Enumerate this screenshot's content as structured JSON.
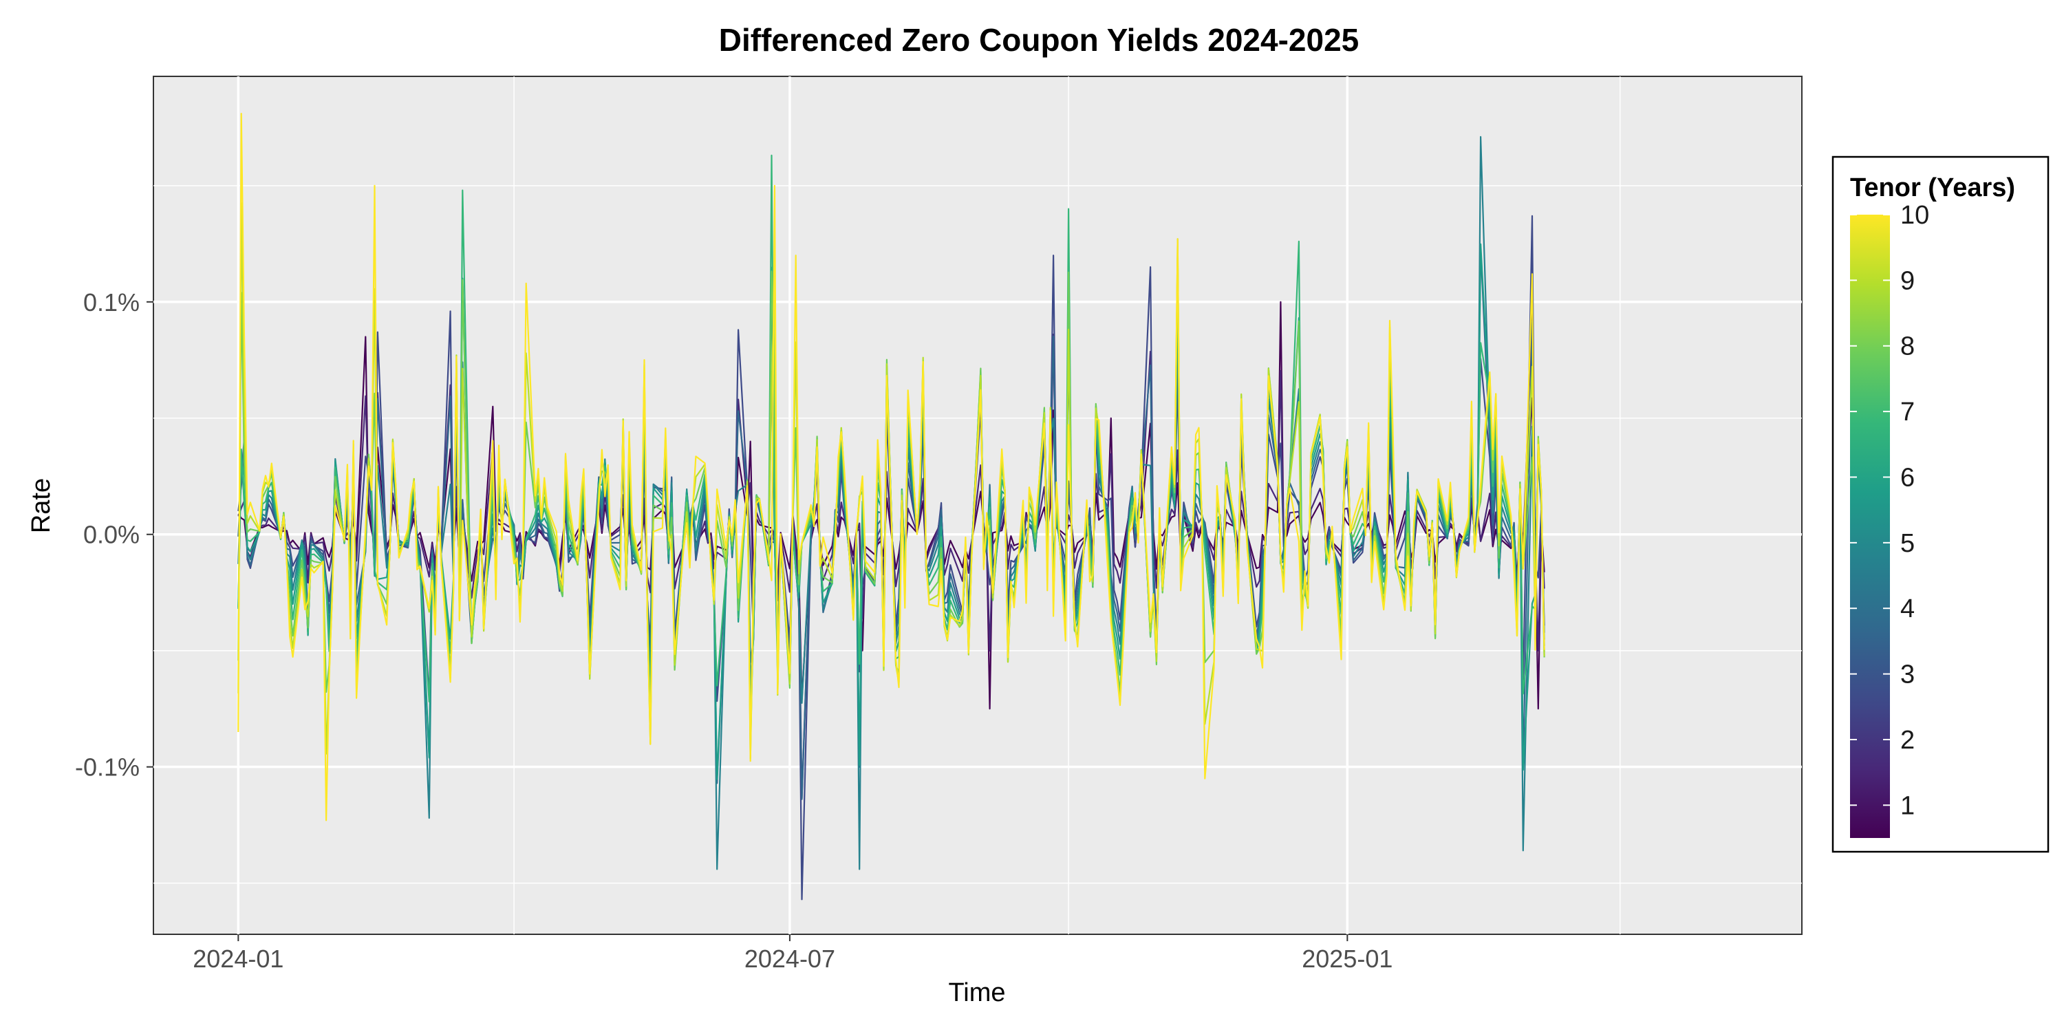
{
  "chart_data": {
    "type": "line",
    "title": "Differenced Zero Coupon Yields 2024-2025",
    "xlabel": "Time",
    "ylabel": "Rate",
    "x_ticks": [
      "2024-01",
      "2024-07",
      "2025-01"
    ],
    "y_ticks": [
      "-0.1%",
      "0.0%",
      "0.1%"
    ],
    "x_range": [
      "2023-12-04",
      "2025-05-31"
    ],
    "ylim": [
      -0.172,
      0.197
    ],
    "x_start": "2024-01-01",
    "x_end": "2025-03-07",
    "grid": true,
    "legend": {
      "title": "Tenor (Years)",
      "position": "right",
      "type": "colorbar",
      "labels": [
        "1",
        "2",
        "3",
        "4",
        "5",
        "6",
        "7",
        "8",
        "9",
        "10"
      ],
      "range": [
        0.5,
        10
      ]
    },
    "colors": {
      "panel_background": "#EBEBEB",
      "grid": "#FFFFFF",
      "palette": [
        "#440154",
        "#482878",
        "#3E4A89",
        "#31688E",
        "#26828E",
        "#1F9E89",
        "#35B779",
        "#6DCD59",
        "#B4DE2C",
        "#FDE725"
      ]
    },
    "series": [
      {
        "tenor": 1,
        "peaks": [
          {
            "x": "2024-01-01",
            "y": 0.008
          },
          {
            "x": "2024-02-12",
            "y": 0.085
          },
          {
            "x": "2024-03-25",
            "y": 0.055
          },
          {
            "x": "2024-05-02",
            "y": 0.005
          },
          {
            "x": "2024-06-18",
            "y": 0.04
          },
          {
            "x": "2024-07-25",
            "y": -0.05
          },
          {
            "x": "2024-09-05",
            "y": -0.075
          },
          {
            "x": "2024-10-15",
            "y": 0.05
          },
          {
            "x": "2024-12-10",
            "y": 0.1
          },
          {
            "x": "2025-01-20",
            "y": 0.01
          },
          {
            "x": "2025-03-05",
            "y": -0.075
          }
        ]
      },
      {
        "tenor": 3,
        "peaks": [
          {
            "x": "2024-01-01",
            "y": 0.01
          },
          {
            "x": "2024-02-17",
            "y": 0.087
          },
          {
            "x": "2024-03-10",
            "y": 0.096
          },
          {
            "x": "2024-06-15",
            "y": 0.088
          },
          {
            "x": "2024-07-05",
            "y": -0.157
          },
          {
            "x": "2024-09-26",
            "y": 0.12
          },
          {
            "x": "2024-10-28",
            "y": 0.115
          },
          {
            "x": "2025-03-02",
            "y": 0.137
          }
        ]
      },
      {
        "tenor": 5,
        "peaks": [
          {
            "x": "2024-03-03",
            "y": -0.122
          },
          {
            "x": "2024-06-07",
            "y": -0.144
          },
          {
            "x": "2024-07-24",
            "y": -0.144
          },
          {
            "x": "2025-02-14",
            "y": 0.171
          },
          {
            "x": "2025-03-01",
            "y": -0.136
          }
        ]
      },
      {
        "tenor": 7,
        "peaks": [
          {
            "x": "2024-01-03",
            "y": 0.012
          },
          {
            "x": "2024-03-15",
            "y": 0.148
          },
          {
            "x": "2024-06-25",
            "y": 0.163
          },
          {
            "x": "2024-10-01",
            "y": 0.14
          },
          {
            "x": "2024-12-15",
            "y": 0.126
          }
        ]
      },
      {
        "tenor": 10,
        "peaks": [
          {
            "x": "2024-01-02",
            "y": 0.181
          },
          {
            "x": "2024-01-01",
            "y": -0.085
          },
          {
            "x": "2024-02-15",
            "y": 0.15
          },
          {
            "x": "2024-01-30",
            "y": -0.123
          },
          {
            "x": "2024-04-05",
            "y": 0.108
          },
          {
            "x": "2024-06-26",
            "y": 0.15
          },
          {
            "x": "2024-07-03",
            "y": 0.12
          },
          {
            "x": "2024-11-15",
            "y": -0.105
          },
          {
            "x": "2025-03-03",
            "y": 0.112
          }
        ]
      }
    ]
  }
}
